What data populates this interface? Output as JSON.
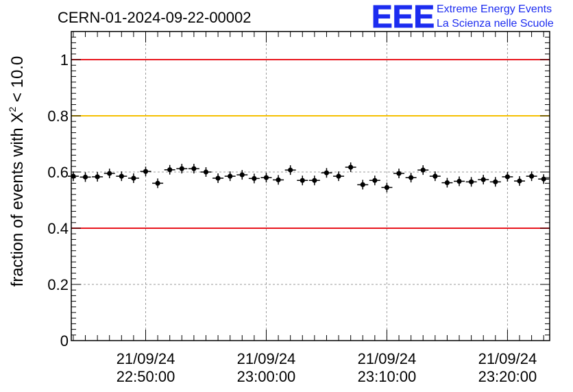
{
  "chart_data": {
    "type": "scatter",
    "title": "CERN-01-2024-09-22-00002",
    "ylabel_main": "fraction of events with X",
    "ylabel_sup": "2",
    "ylabel_tail": " < 10.0",
    "xlabel": "",
    "ylim": [
      0,
      1.1
    ],
    "grid": true,
    "y_ticks": [
      {
        "value": 0,
        "label": "0"
      },
      {
        "value": 0.2,
        "label": "0.2"
      },
      {
        "value": 0.4,
        "label": "0.4"
      },
      {
        "value": 0.6,
        "label": "0.6"
      },
      {
        "value": 0.8,
        "label": "0.8"
      },
      {
        "value": 1.0,
        "label": "1"
      }
    ],
    "x_range": [
      "2024-09-21T22:43:50",
      "2024-09-21T23:23:30"
    ],
    "x_ticks": [
      {
        "value": "2024-09-21T22:50:00",
        "date": "21/09/24",
        "time": "22:50:00"
      },
      {
        "value": "2024-09-21T23:00:00",
        "date": "21/09/24",
        "time": "23:00:00"
      },
      {
        "value": "2024-09-21T23:10:00",
        "date": "21/09/24",
        "time": "23:10:00"
      },
      {
        "value": "2024-09-21T23:20:00",
        "date": "21/09/24",
        "time": "23:20:00"
      }
    ],
    "reference_lines": [
      {
        "y": 1.0,
        "color": "#e8141c"
      },
      {
        "y": 0.8,
        "color": "#f5c000"
      },
      {
        "y": 0.4,
        "color": "#e8141c"
      }
    ],
    "x": [
      "2024-09-21T22:44:00",
      "2024-09-21T22:45:00",
      "2024-09-21T22:46:00",
      "2024-09-21T22:47:00",
      "2024-09-21T22:48:00",
      "2024-09-21T22:49:00",
      "2024-09-21T22:50:00",
      "2024-09-21T22:51:00",
      "2024-09-21T22:52:00",
      "2024-09-21T22:53:00",
      "2024-09-21T22:54:00",
      "2024-09-21T22:55:00",
      "2024-09-21T22:56:00",
      "2024-09-21T22:57:00",
      "2024-09-21T22:58:00",
      "2024-09-21T22:59:00",
      "2024-09-21T23:00:00",
      "2024-09-21T23:01:00",
      "2024-09-21T23:02:00",
      "2024-09-21T23:03:00",
      "2024-09-21T23:04:00",
      "2024-09-21T23:05:00",
      "2024-09-21T23:06:00",
      "2024-09-21T23:07:00",
      "2024-09-21T23:08:00",
      "2024-09-21T23:09:00",
      "2024-09-21T23:10:00",
      "2024-09-21T23:11:00",
      "2024-09-21T23:12:00",
      "2024-09-21T23:13:00",
      "2024-09-21T23:14:00",
      "2024-09-21T23:15:00",
      "2024-09-21T23:16:00",
      "2024-09-21T23:17:00",
      "2024-09-21T23:18:00",
      "2024-09-21T23:19:00",
      "2024-09-21T23:20:00",
      "2024-09-21T23:21:00",
      "2024-09-21T23:22:00",
      "2024-09-21T23:23:00"
    ],
    "y": [
      0.585,
      0.582,
      0.583,
      0.595,
      0.585,
      0.578,
      0.602,
      0.56,
      0.608,
      0.612,
      0.612,
      0.6,
      0.578,
      0.585,
      0.59,
      0.577,
      0.58,
      0.572,
      0.607,
      0.57,
      0.57,
      0.597,
      0.585,
      0.617,
      0.555,
      0.57,
      0.545,
      0.595,
      0.58,
      0.607,
      0.585,
      0.562,
      0.567,
      0.565,
      0.573,
      0.565,
      0.583,
      0.568,
      0.585,
      0.575
    ],
    "marker_color": "#000000"
  },
  "logo": {
    "mark": "EEE",
    "line1": "Extreme Energy Events",
    "line2": "La Scienza nelle Scuole",
    "color": "#1c2cf0"
  }
}
